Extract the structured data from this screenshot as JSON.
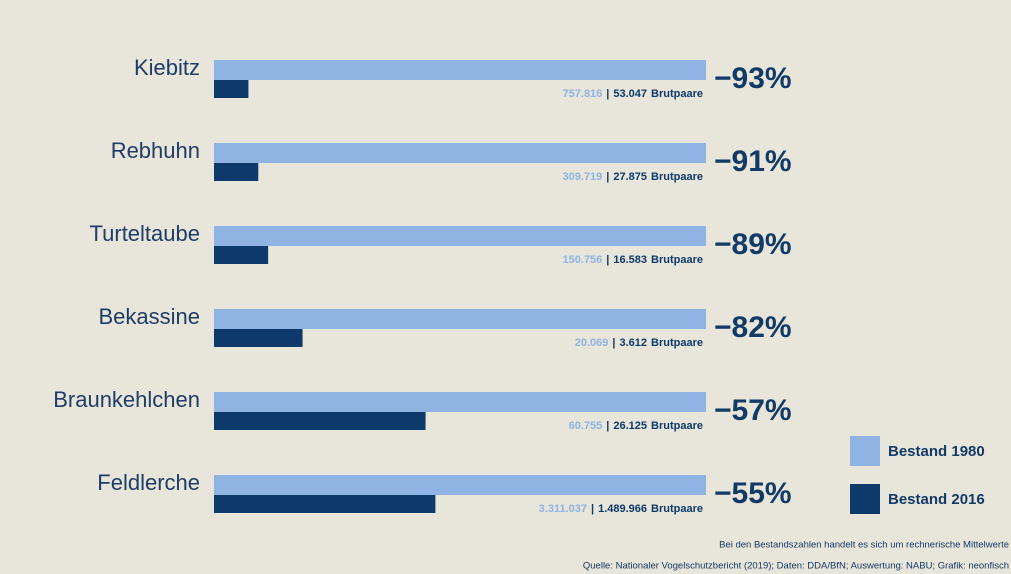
{
  "chart_data": {
    "type": "bar",
    "categories": [
      "Kiebitz",
      "Rebhuhn",
      "Turteltaube",
      "Bekassine",
      "Braunkehlchen",
      "Feldlerche"
    ],
    "series": [
      {
        "name": "Bestand 1980",
        "color": "#8fb4e3",
        "values": [
          757816,
          309719,
          150756,
          20069,
          60755,
          3311037
        ],
        "value_labels": [
          "757.816",
          "309.719",
          "150.756",
          "20.069",
          "60.755",
          "3.311.037"
        ]
      },
      {
        "name": "Bestand 2016",
        "color": "#0d3a6b",
        "values": [
          53047,
          27875,
          16583,
          3612,
          26125,
          1489966
        ],
        "value_labels": [
          "53.047",
          "27.875",
          "16.583",
          "3.612",
          "26.125",
          "1.489.966"
        ]
      }
    ],
    "unit": "Brutpaare",
    "change": {
      "values": [
        -93,
        -91,
        -89,
        -82,
        -57,
        -55
      ],
      "value_labels": [
        "−93%",
        "−91%",
        "−89%",
        "−82%",
        "−57%",
        "−55%"
      ]
    },
    "notes": [
      "Bei den Bestandszahlen handelt es sich um rechnerische Mittelwerte",
      "Quelle: Nationaler Vogelschutzbericht (2019); Daten: DDA/BfN; Auswertung: NABU; Grafik: neonfisch"
    ]
  }
}
